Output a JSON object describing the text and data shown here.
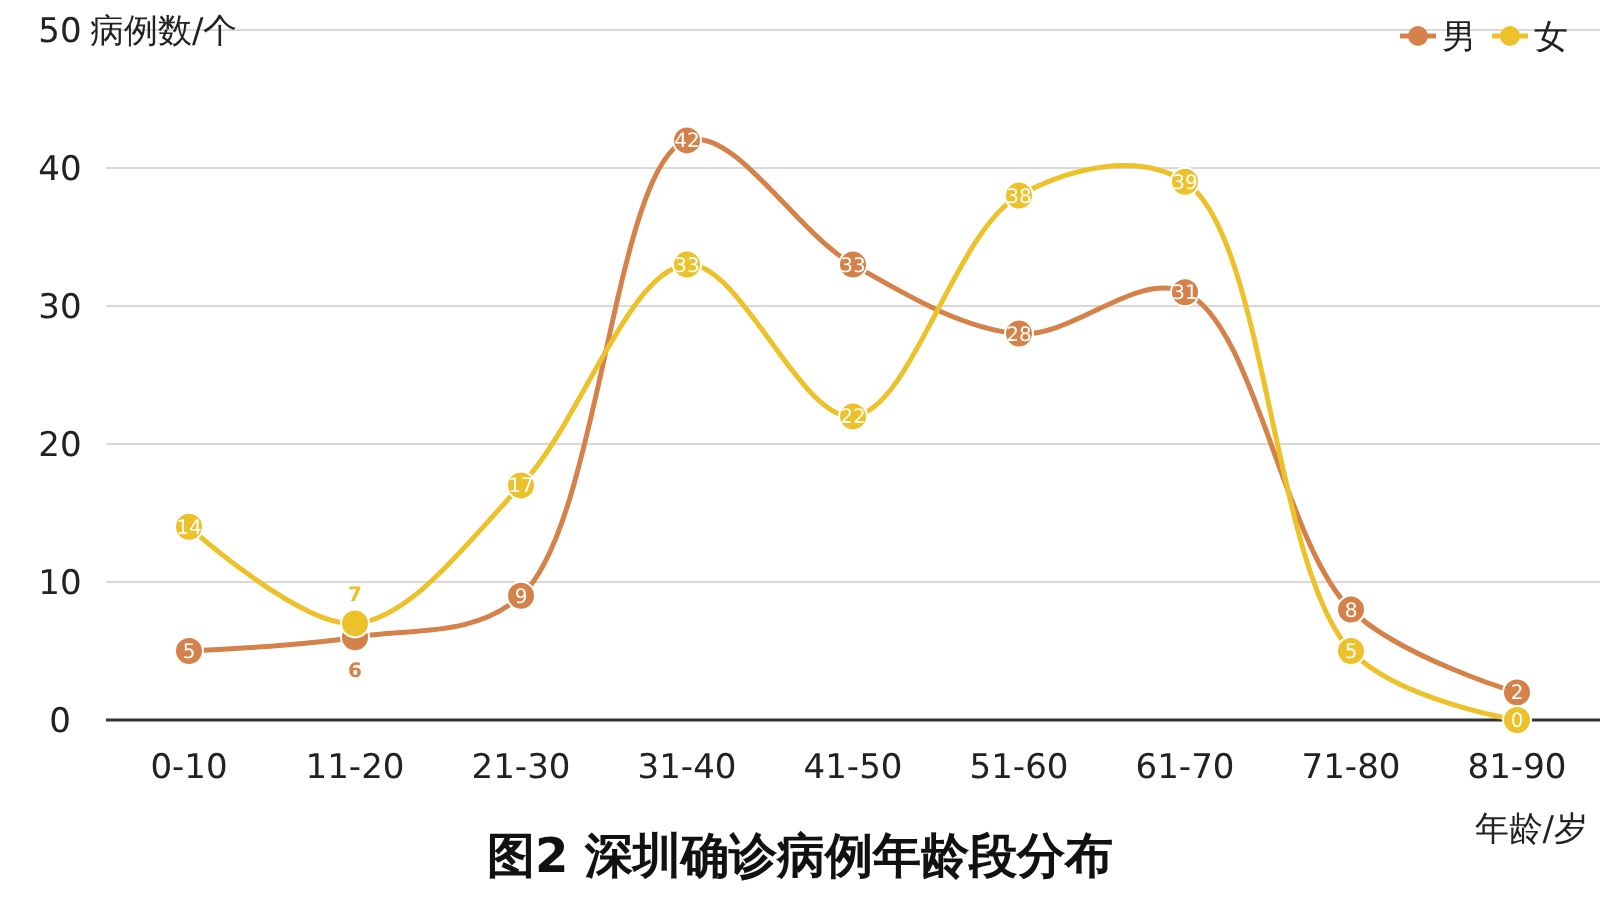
{
  "chart_data": {
    "type": "line",
    "title": "图2 深圳确诊病例年龄段分布",
    "xlabel": "年龄/岁",
    "ylabel": "病例数/个",
    "categories": [
      "0-10",
      "11-20",
      "21-30",
      "31-40",
      "41-50",
      "51-60",
      "61-70",
      "71-80",
      "81-90"
    ],
    "series": [
      {
        "name": "男",
        "color": "#d4824a",
        "values": [
          5,
          6,
          9,
          42,
          33,
          28,
          31,
          8,
          2
        ]
      },
      {
        "name": "女",
        "color": "#ecc12a",
        "values": [
          14,
          7,
          17,
          33,
          22,
          38,
          39,
          5,
          0
        ]
      }
    ],
    "ylim": [
      0,
      50
    ],
    "yticks": [
      0,
      10,
      20,
      30,
      40,
      50
    ],
    "grid": "y",
    "legend": "top right",
    "marker": "circle",
    "data_labels": true
  }
}
